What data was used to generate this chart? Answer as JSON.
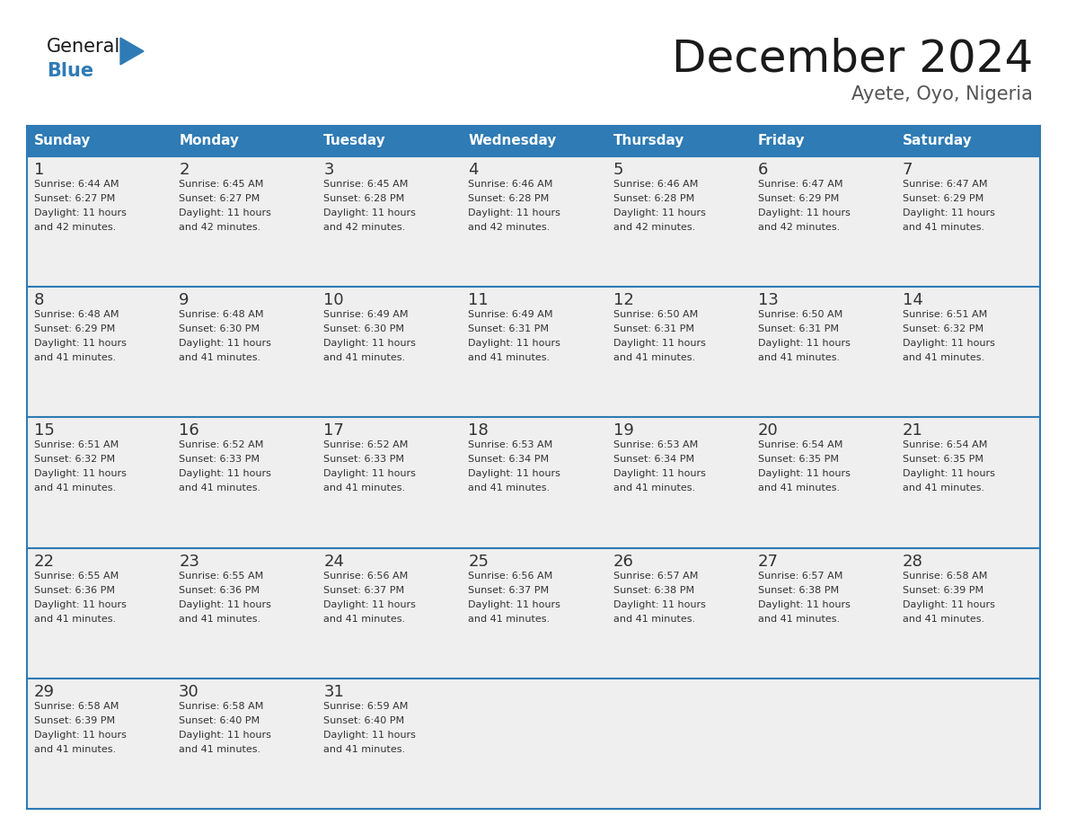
{
  "title": "December 2024",
  "subtitle": "Ayete, Oyo, Nigeria",
  "header_color": "#2E7BB5",
  "header_text_color": "#FFFFFF",
  "day_names": [
    "Sunday",
    "Monday",
    "Tuesday",
    "Wednesday",
    "Thursday",
    "Friday",
    "Saturday"
  ],
  "cell_bg_color": "#EFEFEF",
  "text_color": "#333333",
  "line_color": "#2E7BB5",
  "calendar": [
    [
      {
        "day": "1",
        "sunrise": "6:44 AM",
        "sunset": "6:27 PM",
        "daylight_h": "11 hours",
        "daylight_m": "and 42 minutes."
      },
      {
        "day": "2",
        "sunrise": "6:45 AM",
        "sunset": "6:27 PM",
        "daylight_h": "11 hours",
        "daylight_m": "and 42 minutes."
      },
      {
        "day": "3",
        "sunrise": "6:45 AM",
        "sunset": "6:28 PM",
        "daylight_h": "11 hours",
        "daylight_m": "and 42 minutes."
      },
      {
        "day": "4",
        "sunrise": "6:46 AM",
        "sunset": "6:28 PM",
        "daylight_h": "11 hours",
        "daylight_m": "and 42 minutes."
      },
      {
        "day": "5",
        "sunrise": "6:46 AM",
        "sunset": "6:28 PM",
        "daylight_h": "11 hours",
        "daylight_m": "and 42 minutes."
      },
      {
        "day": "6",
        "sunrise": "6:47 AM",
        "sunset": "6:29 PM",
        "daylight_h": "11 hours",
        "daylight_m": "and 42 minutes."
      },
      {
        "day": "7",
        "sunrise": "6:47 AM",
        "sunset": "6:29 PM",
        "daylight_h": "11 hours",
        "daylight_m": "and 41 minutes."
      }
    ],
    [
      {
        "day": "8",
        "sunrise": "6:48 AM",
        "sunset": "6:29 PM",
        "daylight_h": "11 hours",
        "daylight_m": "and 41 minutes."
      },
      {
        "day": "9",
        "sunrise": "6:48 AM",
        "sunset": "6:30 PM",
        "daylight_h": "11 hours",
        "daylight_m": "and 41 minutes."
      },
      {
        "day": "10",
        "sunrise": "6:49 AM",
        "sunset": "6:30 PM",
        "daylight_h": "11 hours",
        "daylight_m": "and 41 minutes."
      },
      {
        "day": "11",
        "sunrise": "6:49 AM",
        "sunset": "6:31 PM",
        "daylight_h": "11 hours",
        "daylight_m": "and 41 minutes."
      },
      {
        "day": "12",
        "sunrise": "6:50 AM",
        "sunset": "6:31 PM",
        "daylight_h": "11 hours",
        "daylight_m": "and 41 minutes."
      },
      {
        "day": "13",
        "sunrise": "6:50 AM",
        "sunset": "6:31 PM",
        "daylight_h": "11 hours",
        "daylight_m": "and 41 minutes."
      },
      {
        "day": "14",
        "sunrise": "6:51 AM",
        "sunset": "6:32 PM",
        "daylight_h": "11 hours",
        "daylight_m": "and 41 minutes."
      }
    ],
    [
      {
        "day": "15",
        "sunrise": "6:51 AM",
        "sunset": "6:32 PM",
        "daylight_h": "11 hours",
        "daylight_m": "and 41 minutes."
      },
      {
        "day": "16",
        "sunrise": "6:52 AM",
        "sunset": "6:33 PM",
        "daylight_h": "11 hours",
        "daylight_m": "and 41 minutes."
      },
      {
        "day": "17",
        "sunrise": "6:52 AM",
        "sunset": "6:33 PM",
        "daylight_h": "11 hours",
        "daylight_m": "and 41 minutes."
      },
      {
        "day": "18",
        "sunrise": "6:53 AM",
        "sunset": "6:34 PM",
        "daylight_h": "11 hours",
        "daylight_m": "and 41 minutes."
      },
      {
        "day": "19",
        "sunrise": "6:53 AM",
        "sunset": "6:34 PM",
        "daylight_h": "11 hours",
        "daylight_m": "and 41 minutes."
      },
      {
        "day": "20",
        "sunrise": "6:54 AM",
        "sunset": "6:35 PM",
        "daylight_h": "11 hours",
        "daylight_m": "and 41 minutes."
      },
      {
        "day": "21",
        "sunrise": "6:54 AM",
        "sunset": "6:35 PM",
        "daylight_h": "11 hours",
        "daylight_m": "and 41 minutes."
      }
    ],
    [
      {
        "day": "22",
        "sunrise": "6:55 AM",
        "sunset": "6:36 PM",
        "daylight_h": "11 hours",
        "daylight_m": "and 41 minutes."
      },
      {
        "day": "23",
        "sunrise": "6:55 AM",
        "sunset": "6:36 PM",
        "daylight_h": "11 hours",
        "daylight_m": "and 41 minutes."
      },
      {
        "day": "24",
        "sunrise": "6:56 AM",
        "sunset": "6:37 PM",
        "daylight_h": "11 hours",
        "daylight_m": "and 41 minutes."
      },
      {
        "day": "25",
        "sunrise": "6:56 AM",
        "sunset": "6:37 PM",
        "daylight_h": "11 hours",
        "daylight_m": "and 41 minutes."
      },
      {
        "day": "26",
        "sunrise": "6:57 AM",
        "sunset": "6:38 PM",
        "daylight_h": "11 hours",
        "daylight_m": "and 41 minutes."
      },
      {
        "day": "27",
        "sunrise": "6:57 AM",
        "sunset": "6:38 PM",
        "daylight_h": "11 hours",
        "daylight_m": "and 41 minutes."
      },
      {
        "day": "28",
        "sunrise": "6:58 AM",
        "sunset": "6:39 PM",
        "daylight_h": "11 hours",
        "daylight_m": "and 41 minutes."
      }
    ],
    [
      {
        "day": "29",
        "sunrise": "6:58 AM",
        "sunset": "6:39 PM",
        "daylight_h": "11 hours",
        "daylight_m": "and 41 minutes."
      },
      {
        "day": "30",
        "sunrise": "6:58 AM",
        "sunset": "6:40 PM",
        "daylight_h": "11 hours",
        "daylight_m": "and 41 minutes."
      },
      {
        "day": "31",
        "sunrise": "6:59 AM",
        "sunset": "6:40 PM",
        "daylight_h": "11 hours",
        "daylight_m": "and 41 minutes."
      },
      null,
      null,
      null,
      null
    ]
  ],
  "logo_color_general": "#1A1A1A",
  "logo_color_blue": "#2E7BB5",
  "title_fontsize": 36,
  "subtitle_fontsize": 15,
  "header_fontsize": 11,
  "day_num_fontsize": 13,
  "cell_text_fontsize": 8
}
